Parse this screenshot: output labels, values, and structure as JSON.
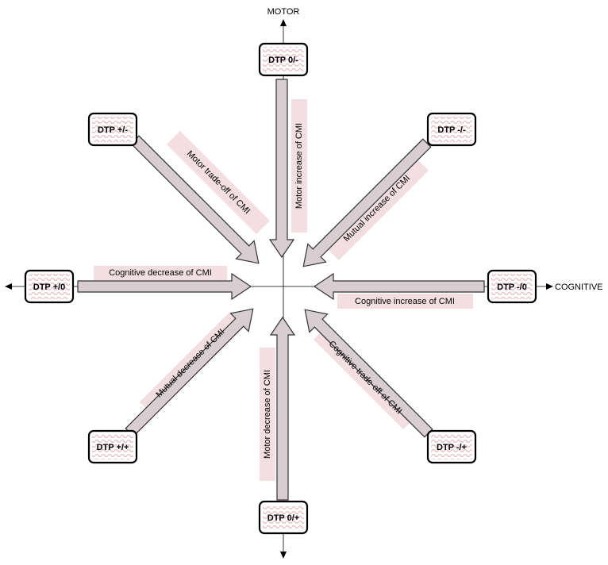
{
  "axes": {
    "vertical_label": "MOTOR",
    "horizontal_label": "COGNITIVE"
  },
  "boxes": {
    "top": "DTP 0/-",
    "top_left": "DTP +/-",
    "top_right": "DTP -/-",
    "left": "DTP +/0",
    "right": "DTP -/0",
    "bottom_left": "DTP +/+",
    "bottom_right": "DTP -/+",
    "bottom": "DTP 0/+"
  },
  "arrows": {
    "top": "Motor increase of CMI",
    "top_left": "Motor trade-off of CMI",
    "top_right": "Mutual increase of CMI",
    "left": "Cognitive decrease of CMI",
    "right": "Cognitive increase of CMI",
    "bottom_left": "Mutual decrease of CMI",
    "bottom_right": "Cognitive trade-off of CMI",
    "bottom": "Motor decrease of CMI"
  },
  "colors": {
    "band": "#f3dfe2",
    "arrow_fill": "#d8cdd0",
    "box_pattern": "#e8c6cc"
  }
}
